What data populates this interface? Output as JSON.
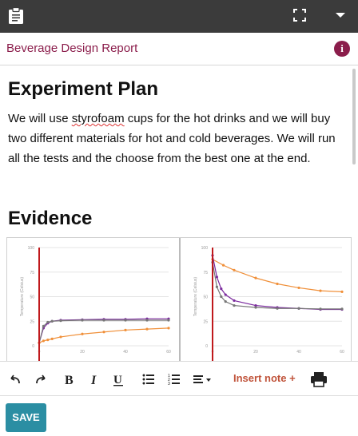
{
  "header": {
    "clipboard_icon": "clipboard-icon",
    "fullscreen_icon": "fullscreen-icon",
    "menu_icon": "caret-down-icon"
  },
  "title_bar": {
    "title": "Beverage Design Report",
    "info_glyph": "i"
  },
  "document": {
    "heading1": "Experiment Plan",
    "plan_before": "We will use ",
    "plan_misspelled": "styrofoam",
    "plan_after": " cups for the hot drinks and we will buy two different materials for hot and cold beverages. We will run all the tests and the choose from the best one at the end.",
    "heading2": "Evidence"
  },
  "toolbar": {
    "insert_note_label": "Insert note +"
  },
  "save_label": "SAVE",
  "colors": {
    "brand": "#8b1d4b",
    "save": "#2b8ea3",
    "insert": "#c0533a"
  },
  "chart_data": [
    {
      "type": "line",
      "ylabel": "Temperature (Celsius)",
      "ylim": [
        0,
        100
      ],
      "xlim": [
        0,
        60
      ],
      "yticks": [
        "100",
        "75",
        "50",
        "25",
        "0"
      ],
      "xticks": [
        "0",
        "20",
        "40",
        "60"
      ],
      "series": [
        {
          "color": "#7b2a9e",
          "x": [
            0,
            2,
            4,
            6,
            10,
            20,
            30,
            40,
            50,
            60
          ],
          "values": [
            3,
            18,
            23,
            25,
            26,
            26.5,
            27,
            27,
            27.5,
            27.5
          ]
        },
        {
          "color": "#777777",
          "x": [
            0,
            2,
            4,
            6,
            10,
            20,
            30,
            40,
            50,
            60
          ],
          "values": [
            3,
            20,
            24,
            25,
            25.5,
            26,
            26,
            26,
            26,
            26
          ]
        },
        {
          "color": "#f0903a",
          "x": [
            0,
            2,
            4,
            6,
            10,
            20,
            30,
            40,
            50,
            60
          ],
          "values": [
            3,
            5,
            6,
            7,
            9,
            12,
            14,
            16,
            17,
            18
          ]
        }
      ]
    },
    {
      "type": "line",
      "ylabel": "Temperature (Celsius)",
      "ylim": [
        0,
        100
      ],
      "xlim": [
        0,
        60
      ],
      "yticks": [
        "100",
        "75",
        "50",
        "25",
        "0"
      ],
      "xticks": [
        "0",
        "20",
        "40",
        "60"
      ],
      "series": [
        {
          "color": "#f0903a",
          "x": [
            0,
            5,
            10,
            20,
            30,
            40,
            50,
            60
          ],
          "values": [
            88,
            82,
            77,
            69,
            63,
            59,
            56,
            55
          ]
        },
        {
          "color": "#7b2a9e",
          "x": [
            0,
            2,
            4,
            6,
            10,
            20,
            30,
            40,
            50,
            60
          ],
          "values": [
            92,
            70,
            58,
            52,
            46,
            41,
            39,
            38,
            37,
            37
          ]
        },
        {
          "color": "#777777",
          "x": [
            0,
            2,
            4,
            6,
            10,
            20,
            30,
            40,
            50,
            60
          ],
          "values": [
            85,
            60,
            50,
            45,
            41,
            39,
            38,
            38,
            37.5,
            37.5
          ]
        }
      ]
    }
  ]
}
